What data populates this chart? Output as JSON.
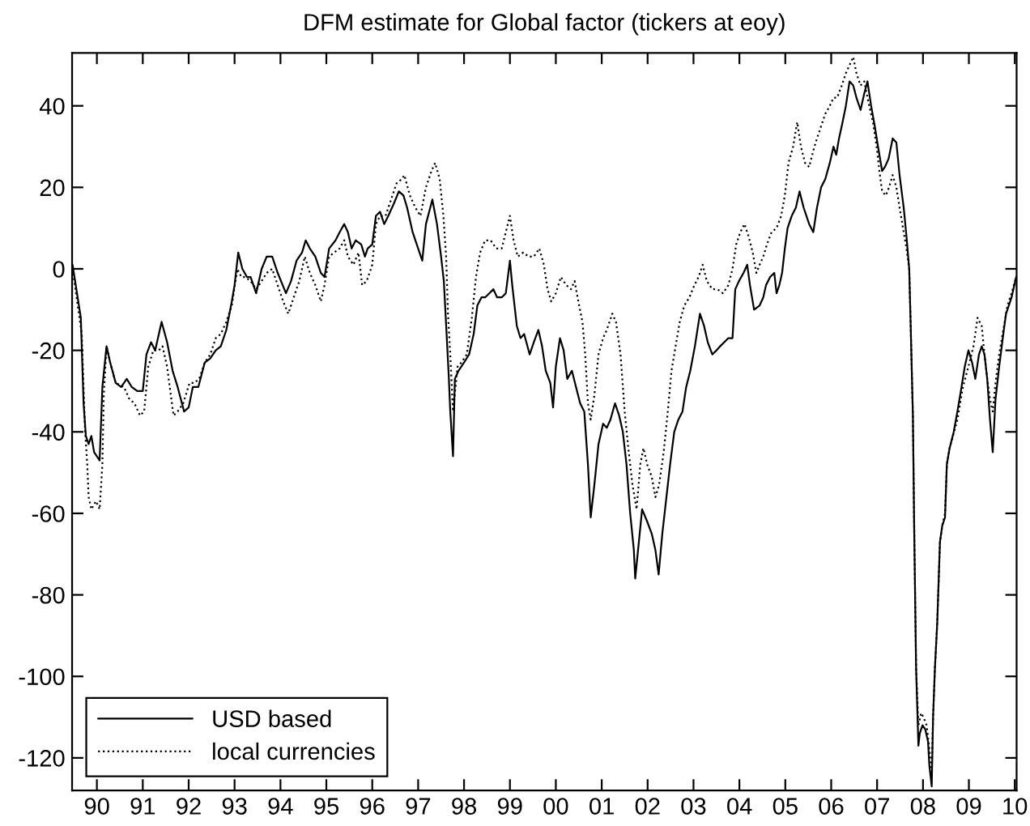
{
  "chart_data": {
    "type": "line",
    "title": "DFM estimate for Global factor (tickers at eoy)",
    "xlim": [
      1989.46,
      2010.04
    ],
    "xticks": [
      {
        "value": 1990,
        "label": "90"
      },
      {
        "value": 1991,
        "label": "91"
      },
      {
        "value": 1992,
        "label": "92"
      },
      {
        "value": 1993,
        "label": "93"
      },
      {
        "value": 1994,
        "label": "94"
      },
      {
        "value": 1995,
        "label": "95"
      },
      {
        "value": 1996,
        "label": "96"
      },
      {
        "value": 1997,
        "label": "97"
      },
      {
        "value": 1998,
        "label": "98"
      },
      {
        "value": 1999,
        "label": "99"
      },
      {
        "value": 2000,
        "label": "00"
      },
      {
        "value": 2001,
        "label": "01"
      },
      {
        "value": 2002,
        "label": "02"
      },
      {
        "value": 2003,
        "label": "03"
      },
      {
        "value": 2004,
        "label": "04"
      },
      {
        "value": 2005,
        "label": "05"
      },
      {
        "value": 2006,
        "label": "06"
      },
      {
        "value": 2007,
        "label": "07"
      },
      {
        "value": 2008,
        "label": "08"
      },
      {
        "value": 2009,
        "label": "09"
      },
      {
        "value": 2010,
        "label": "10"
      }
    ],
    "ylim": [
      -128,
      53
    ],
    "yticks": [
      -120,
      -100,
      -80,
      -60,
      -40,
      -20,
      0,
      20,
      40
    ],
    "legend": "bottom left",
    "series": [
      {
        "name": "USD based",
        "color": "#000000",
        "line_style": "solid",
        "x": [
          1989.47,
          1989.65,
          1989.71,
          1989.76,
          1989.82,
          1989.88,
          1989.94,
          1990.06,
          1990.12,
          1990.21,
          1990.29,
          1990.41,
          1990.53,
          1990.65,
          1990.76,
          1990.88,
          1991.0,
          1991.08,
          1991.18,
          1991.27,
          1991.41,
          1991.53,
          1991.65,
          1991.76,
          1991.9,
          1992.0,
          1992.09,
          1992.21,
          1992.35,
          1992.47,
          1992.59,
          1992.7,
          1992.82,
          1992.94,
          1993.0,
          1993.08,
          1993.17,
          1993.27,
          1993.35,
          1993.47,
          1993.59,
          1993.7,
          1993.82,
          1993.94,
          1994.12,
          1994.23,
          1994.35,
          1994.47,
          1994.55,
          1994.64,
          1994.76,
          1994.88,
          1994.96,
          1995.06,
          1995.2,
          1995.29,
          1995.39,
          1995.47,
          1995.55,
          1995.64,
          1995.76,
          1995.84,
          1995.9,
          1996.0,
          1996.08,
          1996.17,
          1996.26,
          1996.35,
          1996.47,
          1996.58,
          1996.68,
          1996.76,
          1996.88,
          1997.0,
          1997.09,
          1997.17,
          1997.31,
          1997.41,
          1997.5,
          1997.56,
          1997.62,
          1997.67,
          1997.7,
          1997.76,
          1997.8,
          1997.88,
          1998.0,
          1998.11,
          1998.21,
          1998.29,
          1998.38,
          1998.46,
          1998.55,
          1998.64,
          1998.72,
          1998.82,
          1998.91,
          1999.0,
          1999.05,
          1999.15,
          1999.23,
          1999.31,
          1999.43,
          1999.52,
          1999.62,
          1999.7,
          1999.78,
          1999.88,
          1999.94,
          2000.0,
          2000.09,
          2000.17,
          2000.25,
          2000.35,
          2000.44,
          2000.53,
          2000.62,
          2000.7,
          2000.76,
          2000.84,
          2000.93,
          2001.03,
          2001.11,
          2001.19,
          2001.29,
          2001.38,
          2001.46,
          2001.54,
          2001.62,
          2001.7,
          2001.73,
          2001.88,
          2001.99,
          2002.09,
          2002.17,
          2002.24,
          2002.32,
          2002.4,
          2002.49,
          2002.58,
          2002.67,
          2002.76,
          2002.84,
          2002.93,
          2003.03,
          2003.14,
          2003.23,
          2003.31,
          2003.41,
          2003.5,
          2003.58,
          2003.76,
          2003.85,
          2003.91,
          2003.99,
          2004.09,
          2004.17,
          2004.23,
          2004.32,
          2004.44,
          2004.52,
          2004.58,
          2004.67,
          2004.76,
          2004.81,
          2004.87,
          2004.93,
          2004.99,
          2005.05,
          2005.14,
          2005.23,
          2005.31,
          2005.4,
          2005.52,
          2005.61,
          2005.69,
          2005.78,
          2005.87,
          2005.97,
          2006.05,
          2006.11,
          2006.17,
          2006.23,
          2006.32,
          2006.4,
          2006.48,
          2006.55,
          2006.64,
          2006.72,
          2006.79,
          2006.87,
          2006.95,
          2007.02,
          2007.11,
          2007.17,
          2007.25,
          2007.34,
          2007.42,
          2007.49,
          2007.58,
          2007.64,
          2007.7,
          2007.73,
          2007.78,
          2007.81,
          2007.85,
          2007.9,
          2007.93,
          2007.99,
          2008.05,
          2008.11,
          2008.14,
          2008.19,
          2008.22,
          2008.26,
          2008.31,
          2008.34,
          2008.37,
          2008.42,
          2008.48,
          2008.52,
          2008.58,
          2008.67,
          2008.75,
          2008.84,
          2008.91,
          2008.99,
          2009.07,
          2009.14,
          2009.22,
          2009.28,
          2009.34,
          2009.4,
          2009.46,
          2009.52,
          2009.58,
          2009.66,
          2009.75,
          2009.81,
          2009.87,
          2009.93,
          2010.03
        ],
        "values": [
          1,
          -12,
          -33,
          -41,
          -43,
          -41,
          -45,
          -47,
          -29,
          -19,
          -23,
          -28,
          -29,
          -27,
          -29,
          -30,
          -30,
          -21,
          -18,
          -20,
          -13,
          -18,
          -25,
          -29,
          -35,
          -34,
          -29,
          -29,
          -23,
          -22,
          -20,
          -19,
          -15,
          -8,
          -4,
          4,
          0,
          -2,
          -2,
          -6,
          0,
          3,
          3,
          -1,
          -6,
          -3,
          2,
          4,
          7,
          5,
          3,
          -1,
          -2,
          5,
          7,
          9,
          11,
          9,
          5,
          7,
          6,
          3,
          5,
          6,
          13,
          14,
          11,
          13,
          16,
          19,
          18,
          15,
          9,
          5,
          2,
          11,
          17,
          11,
          3,
          -3,
          -16,
          -27,
          -35,
          -46,
          -27,
          -25,
          -23,
          -21,
          -16,
          -9,
          -7,
          -7,
          -6,
          -5,
          -7,
          -7,
          -6,
          2,
          -4,
          -14,
          -17,
          -16,
          -21,
          -18,
          -15,
          -19,
          -25,
          -28,
          -34,
          -24,
          -17,
          -20,
          -27,
          -25,
          -29,
          -33,
          -35,
          -48,
          -61,
          -53,
          -43,
          -38,
          -39,
          -37,
          -33,
          -36,
          -40,
          -48,
          -60,
          -69,
          -76,
          -59,
          -62,
          -65,
          -69,
          -75,
          -65,
          -57,
          -48,
          -40,
          -37,
          -35,
          -29,
          -25,
          -19,
          -11,
          -14,
          -18,
          -21,
          -20,
          -19,
          -17,
          -17,
          -5,
          -3,
          -1,
          1,
          -4,
          -10,
          -9,
          -7,
          -4,
          -2,
          -1,
          -6,
          -4,
          -1,
          5,
          10,
          13,
          15,
          19,
          15,
          11,
          9,
          15,
          20,
          22,
          26,
          30,
          28,
          32,
          35,
          40,
          46,
          45,
          42,
          39,
          43,
          46,
          40,
          35,
          30,
          24,
          25,
          27,
          32,
          31,
          23,
          15,
          8,
          0,
          -13,
          -36,
          -65,
          -98,
          -117,
          -114,
          -112,
          -113,
          -116,
          -122,
          -127,
          -110,
          -98,
          -87,
          -77,
          -67,
          -63,
          -61,
          -48,
          -44,
          -40,
          -35,
          -29,
          -24,
          -20,
          -23,
          -27,
          -21,
          -19,
          -21,
          -27,
          -37,
          -45,
          -32,
          -24,
          -16,
          -11,
          -9,
          -7,
          -2
        ]
      },
      {
        "name": "local currencies",
        "color": "#000000",
        "line_style": "dotted",
        "x": [
          1989.47,
          1989.67,
          1989.74,
          1989.79,
          1989.82,
          1989.88,
          1989.98,
          1990.06,
          1990.12,
          1990.15,
          1990.21,
          1990.29,
          1990.41,
          1990.59,
          1990.71,
          1990.82,
          1990.94,
          1991.03,
          1991.12,
          1991.23,
          1991.35,
          1991.43,
          1991.53,
          1991.67,
          1991.76,
          1991.88,
          1992.02,
          1992.12,
          1992.23,
          1992.35,
          1992.47,
          1992.59,
          1992.7,
          1992.82,
          1992.94,
          1993.06,
          1993.15,
          1993.23,
          1993.35,
          1993.47,
          1993.59,
          1993.7,
          1993.82,
          1993.94,
          1994.06,
          1994.17,
          1994.29,
          1994.41,
          1994.53,
          1994.64,
          1994.76,
          1994.88,
          1994.96,
          1995.06,
          1995.17,
          1995.29,
          1995.39,
          1995.47,
          1995.59,
          1995.7,
          1995.78,
          1995.88,
          1996.0,
          1996.08,
          1996.17,
          1996.29,
          1996.41,
          1996.53,
          1996.64,
          1996.7,
          1996.82,
          1996.94,
          1997.05,
          1997.17,
          1997.29,
          1997.37,
          1997.47,
          1997.55,
          1997.61,
          1997.65,
          1997.7,
          1997.76,
          1997.86,
          1997.94,
          1998.06,
          1998.17,
          1998.26,
          1998.35,
          1998.46,
          1998.58,
          1998.7,
          1998.82,
          1998.91,
          1999.0,
          1999.08,
          1999.17,
          1999.29,
          1999.41,
          1999.52,
          1999.64,
          1999.74,
          1999.82,
          1999.9,
          2000.0,
          2000.11,
          2000.23,
          2000.33,
          2000.41,
          2000.49,
          2000.58,
          2000.64,
          2000.7,
          2000.76,
          2000.84,
          2000.93,
          2001.03,
          2001.11,
          2001.23,
          2001.31,
          2001.41,
          2001.5,
          2001.58,
          2001.67,
          2001.76,
          2001.84,
          2001.91,
          2001.99,
          2002.09,
          2002.17,
          2002.25,
          2002.35,
          2002.44,
          2002.52,
          2002.61,
          2002.7,
          2002.8,
          2002.91,
          2003.02,
          2003.11,
          2003.2,
          2003.29,
          2003.41,
          2003.52,
          2003.64,
          2003.76,
          2003.85,
          2003.93,
          2004.02,
          2004.11,
          2004.2,
          2004.29,
          2004.37,
          2004.44,
          2004.52,
          2004.6,
          2004.7,
          2004.81,
          2004.91,
          2004.99,
          2005.07,
          2005.17,
          2005.26,
          2005.34,
          2005.43,
          2005.52,
          2005.61,
          2005.69,
          2005.78,
          2005.87,
          2005.97,
          2006.05,
          2006.13,
          2006.23,
          2006.32,
          2006.4,
          2006.48,
          2006.55,
          2006.64,
          2006.72,
          2006.81,
          2006.91,
          2006.99,
          2007.05,
          2007.11,
          2007.19,
          2007.26,
          2007.34,
          2007.42,
          2007.49,
          2007.58,
          2007.64,
          2007.7,
          2007.73,
          2007.78,
          2007.81,
          2007.85,
          2007.9,
          2007.96,
          2008.01,
          2008.08,
          2008.14,
          2008.19,
          2008.22,
          2008.26,
          2008.31,
          2008.34,
          2008.37,
          2008.42,
          2008.48,
          2008.52,
          2008.58,
          2008.75,
          2008.87,
          2008.99,
          2009.1,
          2009.19,
          2009.28,
          2009.34,
          2009.4,
          2009.46,
          2009.52,
          2009.58,
          2009.66,
          2009.75,
          2009.84,
          2009.93,
          2010.03
        ],
        "values": [
          0,
          -16,
          -39,
          -48,
          -56,
          -59,
          -57,
          -59,
          -48,
          -31,
          -19,
          -23,
          -28,
          -29,
          -32,
          -33,
          -36,
          -35,
          -24,
          -20,
          -20,
          -19,
          -24,
          -36,
          -35,
          -33,
          -28,
          -28,
          -27,
          -23,
          -21,
          -17,
          -16,
          -13,
          -9,
          0,
          -2,
          -2,
          -3,
          -5,
          -3,
          -1,
          0,
          -4,
          -8,
          -11,
          -7,
          -3,
          3,
          -1,
          -4,
          -8,
          -4,
          3,
          4,
          5,
          7,
          3,
          1,
          4,
          -4,
          -3,
          1,
          11,
          13,
          13,
          17,
          21,
          22,
          23,
          18,
          15,
          13,
          20,
          24,
          26,
          22,
          13,
          3,
          -11,
          -21,
          -35,
          -24,
          -23,
          -21,
          -12,
          -2,
          4,
          7,
          7,
          5,
          5,
          9,
          13,
          7,
          3,
          4,
          3,
          3,
          5,
          1,
          -5,
          -8,
          -6,
          -2,
          -4,
          -5,
          -3,
          -8,
          -13,
          -21,
          -33,
          -37,
          -31,
          -21,
          -17,
          -15,
          -11,
          -13,
          -21,
          -35,
          -44,
          -53,
          -59,
          -48,
          -44,
          -48,
          -51,
          -56,
          -53,
          -45,
          -35,
          -25,
          -19,
          -13,
          -9,
          -7,
          -4,
          -2,
          1,
          -3,
          -5,
          -5,
          -6,
          -4,
          0,
          6,
          9,
          11,
          8,
          4,
          -1,
          1,
          3,
          6,
          9,
          10,
          13,
          18,
          26,
          30,
          36,
          30,
          26,
          25,
          29,
          32,
          35,
          38,
          40,
          42,
          42,
          45,
          48,
          50,
          52,
          48,
          45,
          46,
          41,
          36,
          30,
          24,
          19,
          18,
          20,
          23,
          20,
          15,
          9,
          5,
          0,
          -13,
          -36,
          -65,
          -98,
          -112,
          -109,
          -110,
          -112,
          -118,
          -124,
          -110,
          -98,
          -87,
          -77,
          -67,
          -63,
          -60,
          -48,
          -44,
          -37,
          -29,
          -24,
          -19,
          -12,
          -14,
          -21,
          -27,
          -32,
          -35,
          -28,
          -21,
          -15,
          -9,
          -6,
          -2
        ]
      }
    ]
  }
}
